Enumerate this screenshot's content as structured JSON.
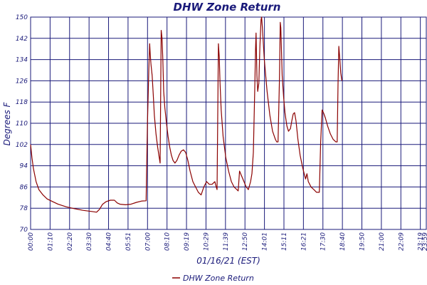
{
  "chart_data": {
    "type": "line",
    "title": "DHW Zone Return",
    "xlabel": "01/16/21 (EST)",
    "ylabel": "Degrees F",
    "ylim": [
      70,
      150
    ],
    "yticks": [
      70,
      78,
      86,
      94,
      102,
      110,
      118,
      126,
      134,
      142,
      150
    ],
    "xtick_labels": [
      "00:00",
      "01:10",
      "02:20",
      "03:30",
      "04:40",
      "05:51",
      "07:00",
      "08:10",
      "09:19",
      "10:29",
      "11:39",
      "12:50",
      "14:01",
      "15:11",
      "16:21",
      "17:30",
      "18:40",
      "19:50",
      "21:00",
      "22:09",
      "23:19",
      "23:59"
    ],
    "xlim_minutes": [
      0,
      1439
    ],
    "grid": true,
    "colors": {
      "series": "#8b0000",
      "grid": "#1a1a7a",
      "text": "#1a1a7a"
    },
    "legend": {
      "position": "bottom-center",
      "label": "DHW Zone Return"
    },
    "series": [
      {
        "name": "DHW Zone Return",
        "points": [
          [
            0,
            102
          ],
          [
            5,
            97
          ],
          [
            10,
            93
          ],
          [
            20,
            88
          ],
          [
            30,
            85
          ],
          [
            45,
            83
          ],
          [
            60,
            81.5
          ],
          [
            80,
            80.5
          ],
          [
            100,
            79.5
          ],
          [
            130,
            78.5
          ],
          [
            160,
            77.8
          ],
          [
            190,
            77.2
          ],
          [
            220,
            76.8
          ],
          [
            240,
            76.5
          ],
          [
            250,
            77.5
          ],
          [
            262,
            79.5
          ],
          [
            275,
            80.5
          ],
          [
            290,
            81
          ],
          [
            305,
            81
          ],
          [
            315,
            80
          ],
          [
            325,
            79.5
          ],
          [
            345,
            79.3
          ],
          [
            365,
            79.5
          ],
          [
            385,
            80.2
          ],
          [
            405,
            80.7
          ],
          [
            420,
            80.8
          ],
          [
            425,
            110
          ],
          [
            430,
            130
          ],
          [
            433,
            140
          ],
          [
            435,
            136
          ],
          [
            438,
            132
          ],
          [
            442,
            128
          ],
          [
            446,
            121
          ],
          [
            450,
            113
          ],
          [
            456,
            106
          ],
          [
            462,
            101
          ],
          [
            468,
            97
          ],
          [
            471,
            95
          ],
          [
            475,
            145
          ],
          [
            478,
            142
          ],
          [
            481,
            134
          ],
          [
            484,
            122
          ],
          [
            488,
            116
          ],
          [
            494,
            110
          ],
          [
            500,
            105
          ],
          [
            506,
            101
          ],
          [
            512,
            98
          ],
          [
            518,
            96
          ],
          [
            525,
            95
          ],
          [
            532,
            96
          ],
          [
            540,
            98
          ],
          [
            548,
            99.5
          ],
          [
            556,
            100
          ],
          [
            564,
            99
          ],
          [
            572,
            96
          ],
          [
            580,
            92
          ],
          [
            590,
            88
          ],
          [
            600,
            86
          ],
          [
            610,
            84
          ],
          [
            620,
            83
          ],
          [
            630,
            86
          ],
          [
            640,
            88
          ],
          [
            650,
            87
          ],
          [
            660,
            87
          ],
          [
            670,
            88
          ],
          [
            675,
            86
          ],
          [
            678,
            85
          ],
          [
            683,
            140
          ],
          [
            686,
            135
          ],
          [
            689,
            125
          ],
          [
            693,
            115
          ],
          [
            700,
            105
          ],
          [
            710,
            97
          ],
          [
            720,
            92
          ],
          [
            730,
            88
          ],
          [
            740,
            86
          ],
          [
            750,
            85
          ],
          [
            755,
            84.5
          ],
          [
            760,
            92
          ],
          [
            768,
            90
          ],
          [
            776,
            88
          ],
          [
            784,
            86
          ],
          [
            792,
            85
          ],
          [
            800,
            88
          ],
          [
            805,
            91
          ],
          [
            810,
            99
          ],
          [
            815,
            122
          ],
          [
            818,
            138
          ],
          [
            820,
            144
          ],
          [
            823,
            128
          ],
          [
            826,
            122
          ],
          [
            830,
            125
          ],
          [
            834,
            139
          ],
          [
            838,
            149
          ],
          [
            840,
            150
          ],
          [
            843,
            146
          ],
          [
            850,
            134
          ],
          [
            860,
            122
          ],
          [
            870,
            113
          ],
          [
            880,
            107
          ],
          [
            890,
            104
          ],
          [
            895,
            103
          ],
          [
            900,
            103
          ],
          [
            905,
            127
          ],
          [
            908,
            148
          ],
          [
            910,
            146
          ],
          [
            915,
            128
          ],
          [
            920,
            120
          ],
          [
            925,
            114
          ],
          [
            932,
            109
          ],
          [
            938,
            107
          ],
          [
            945,
            108
          ],
          [
            950,
            111
          ],
          [
            955,
            113.5
          ],
          [
            960,
            114
          ],
          [
            965,
            111
          ],
          [
            972,
            104
          ],
          [
            980,
            98
          ],
          [
            988,
            94
          ],
          [
            995,
            91
          ],
          [
            1000,
            89
          ],
          [
            1005,
            91
          ],
          [
            1010,
            88
          ],
          [
            1020,
            86
          ],
          [
            1030,
            85
          ],
          [
            1040,
            84
          ],
          [
            1045,
            84
          ],
          [
            1050,
            84
          ],
          [
            1055,
            103
          ],
          [
            1060,
            115
          ],
          [
            1065,
            114
          ],
          [
            1072,
            112
          ],
          [
            1080,
            109
          ],
          [
            1090,
            106
          ],
          [
            1100,
            104
          ],
          [
            1110,
            103
          ],
          [
            1115,
            103
          ],
          [
            1118,
            125
          ],
          [
            1121,
            139
          ],
          [
            1124,
            135
          ],
          [
            1128,
            129
          ],
          [
            1132,
            126
          ]
        ]
      }
    ]
  }
}
